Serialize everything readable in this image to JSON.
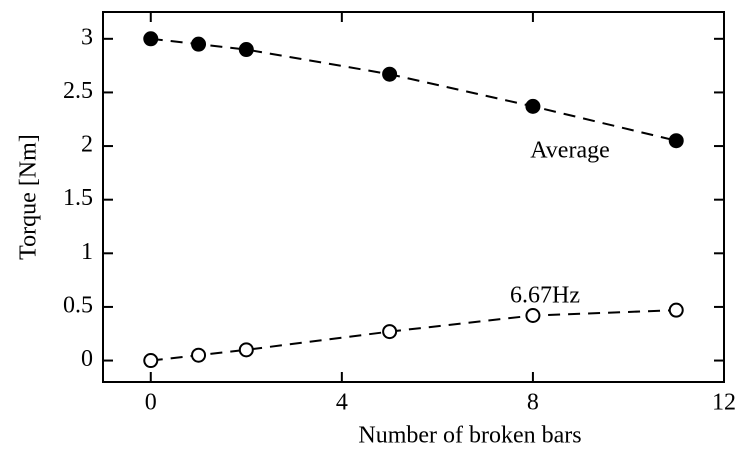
{
  "chart_data": {
    "type": "scatter",
    "x_label": "Number of broken bars",
    "y_label": "Torque [Nm]",
    "xlim": [
      -1,
      12
    ],
    "ylim": [
      -0.2,
      3.25
    ],
    "xticks": [
      0,
      4,
      8,
      12
    ],
    "yticks": [
      0,
      0.5,
      1,
      1.5,
      2,
      2.5,
      3
    ],
    "x": [
      0,
      1,
      2,
      5,
      8,
      11
    ],
    "series": [
      {
        "name": "Average",
        "color": "#000000",
        "filled": true,
        "values": [
          3.0,
          2.95,
          2.9,
          2.67,
          2.37,
          2.05
        ]
      },
      {
        "name": "6.67Hz",
        "color": "#000000",
        "filled": false,
        "values": [
          0.0,
          0.05,
          0.1,
          0.27,
          0.42,
          0.47
        ]
      }
    ]
  }
}
